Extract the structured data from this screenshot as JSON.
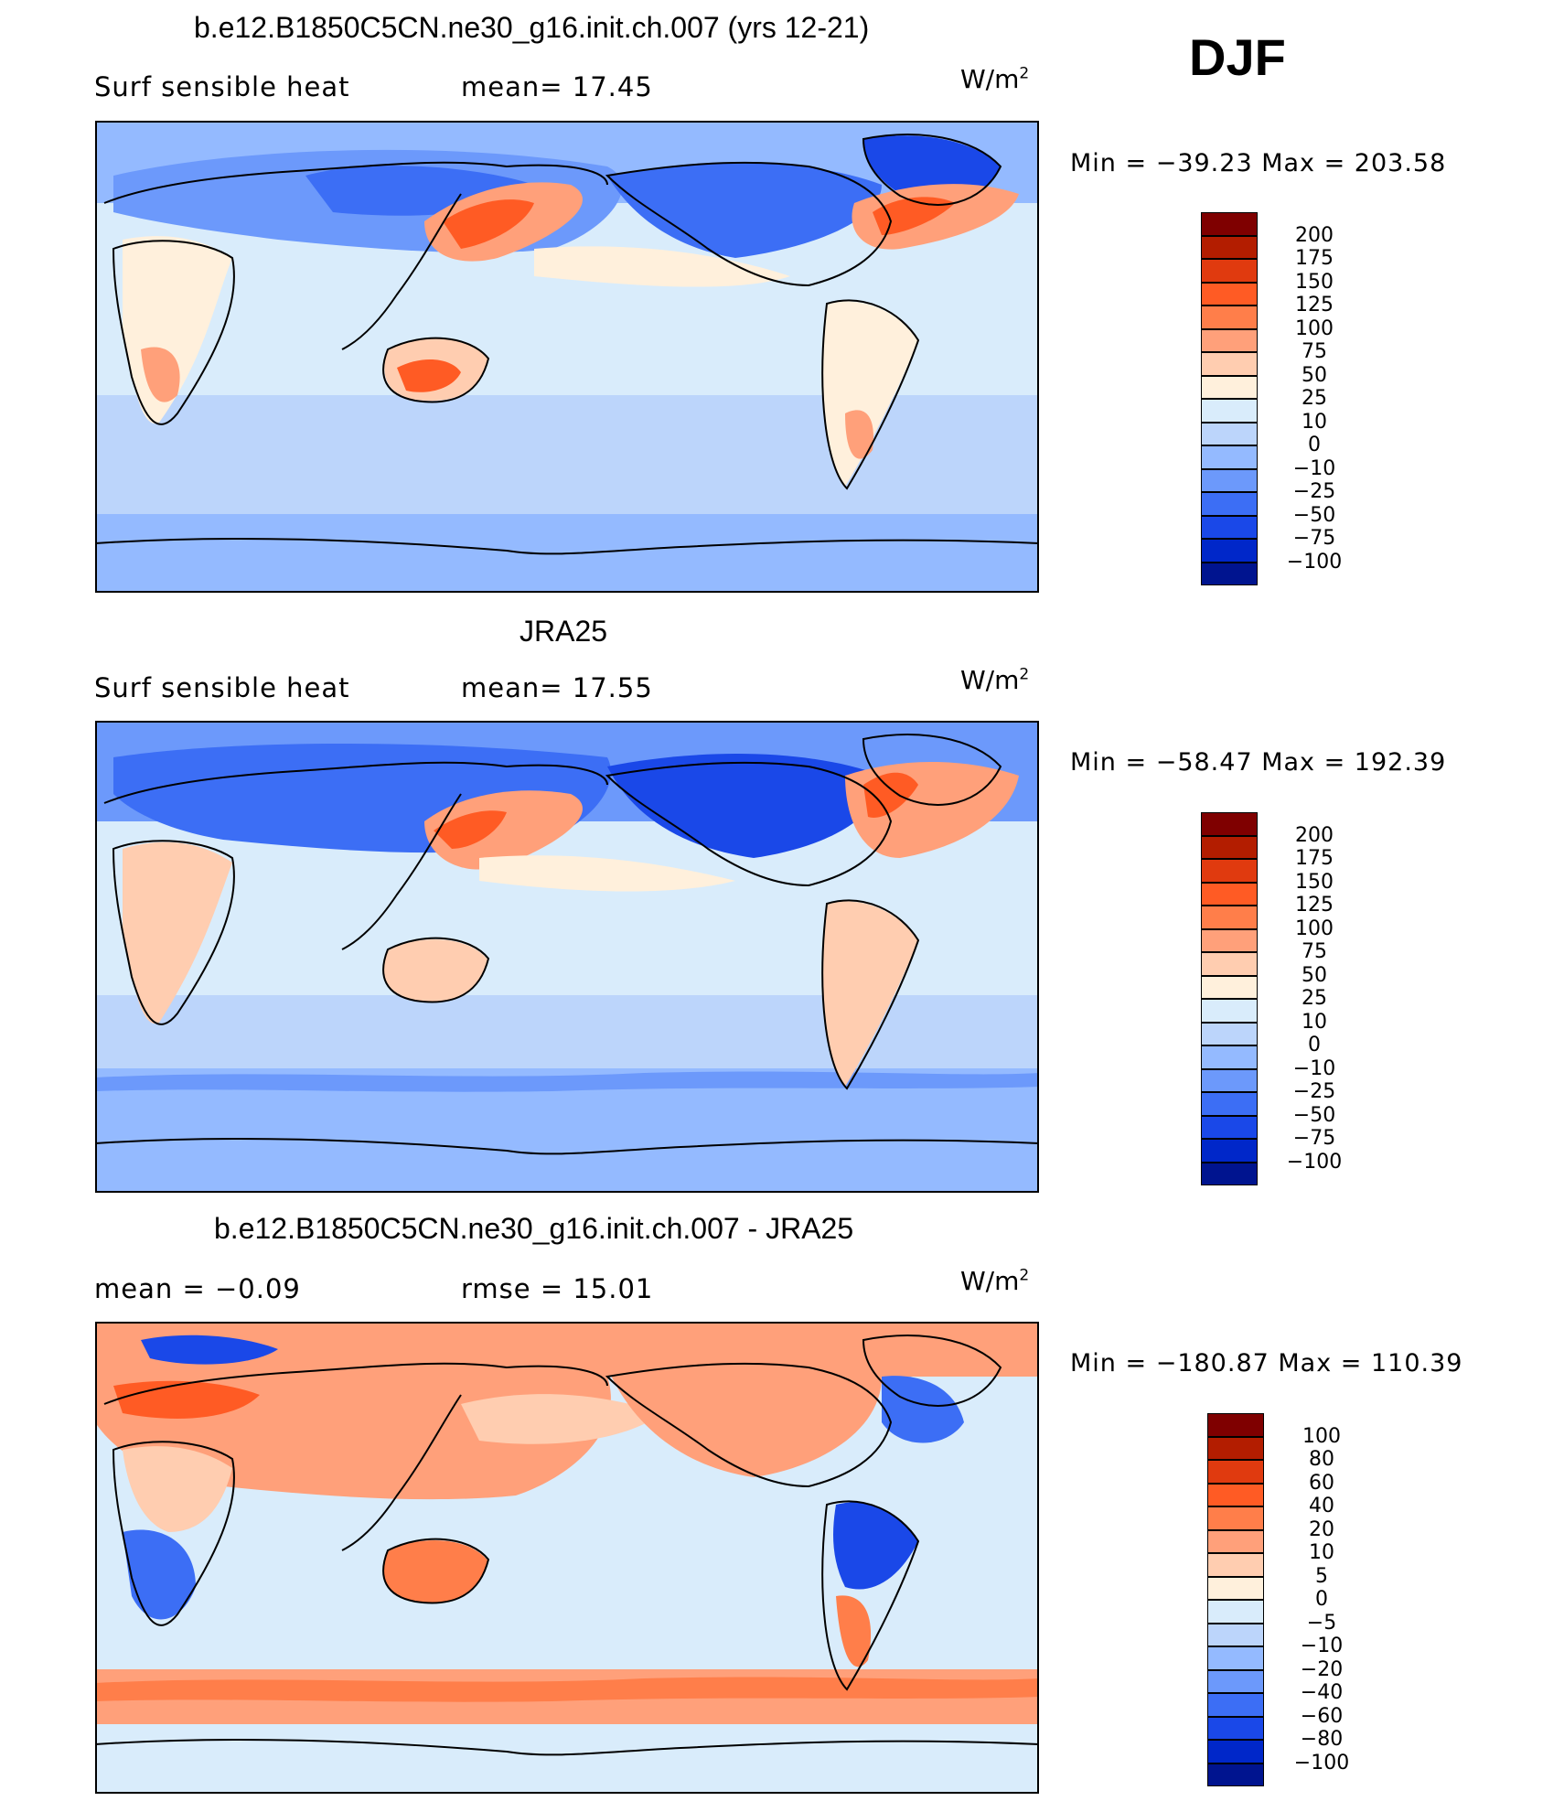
{
  "season": "DJF",
  "units_base": "W/m",
  "units_exp": "2",
  "panels": [
    {
      "title": "b.e12.B1850C5CN.ne30_g16.init.ch.007 (yrs 12-21)",
      "left_label": "Surf  sensible  heat",
      "stat_label": "mean=   17.45",
      "minmax": "Min  =  −39.23  Max  =  203.58",
      "levels": [
        "200",
        "175",
        "150",
        "125",
        "100",
        "75",
        "50",
        "25",
        "10",
        "0",
        "−10",
        "−25",
        "−50",
        "−75",
        "−100"
      ],
      "colors": [
        "#7f0000",
        "#b31d00",
        "#e03a0f",
        "#ff5b24",
        "#ff7e4a",
        "#ffa07a",
        "#ffcdb0",
        "#fff0dc",
        "#d9ecfb",
        "#bcd5fb",
        "#94baff",
        "#6c99fb",
        "#3c6ef5",
        "#1a48e8",
        "#0027c9",
        "#00148f"
      ]
    },
    {
      "title": "JRA25",
      "left_label": "Surf  sensible  heat",
      "stat_label": "mean=   17.55",
      "minmax": "Min  =  −58.47  Max  =  192.39",
      "levels": [
        "200",
        "175",
        "150",
        "125",
        "100",
        "75",
        "50",
        "25",
        "10",
        "0",
        "−10",
        "−25",
        "−50",
        "−75",
        "−100"
      ],
      "colors": [
        "#7f0000",
        "#b31d00",
        "#e03a0f",
        "#ff5b24",
        "#ff7e4a",
        "#ffa07a",
        "#ffcdb0",
        "#fff0dc",
        "#d9ecfb",
        "#bcd5fb",
        "#94baff",
        "#6c99fb",
        "#3c6ef5",
        "#1a48e8",
        "#0027c9",
        "#00148f"
      ]
    },
    {
      "title": "b.e12.B1850C5CN.ne30_g16.init.ch.007 - JRA25",
      "left_label": "mean  =     −0.09",
      "stat_label": "rmse  =    15.01",
      "minmax": "Min  =  −180.87  Max  =  110.39",
      "levels": [
        "100",
        "80",
        "60",
        "40",
        "20",
        "10",
        "5",
        "0",
        "−5",
        "−10",
        "−20",
        "−40",
        "−60",
        "−80",
        "−100"
      ],
      "colors": [
        "#7f0000",
        "#b31d00",
        "#e03a0f",
        "#ff5b24",
        "#ff7e4a",
        "#ffa07a",
        "#ffcdb0",
        "#fff0dc",
        "#d9ecfb",
        "#bcd5fb",
        "#94baff",
        "#6c99fb",
        "#3c6ef5",
        "#1a48e8",
        "#0027c9",
        "#00148f"
      ]
    }
  ]
}
